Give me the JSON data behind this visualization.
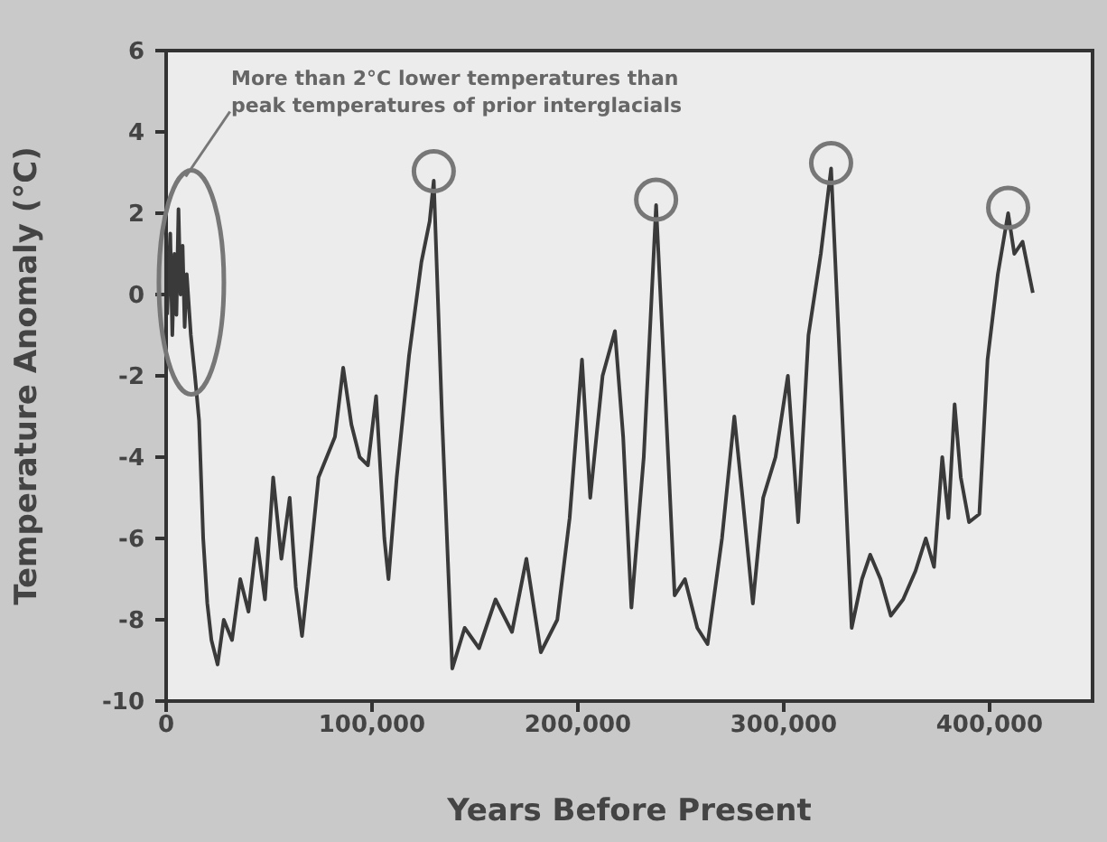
{
  "chart_data": {
    "type": "line",
    "xlabel": "Years Before Present",
    "ylabel": "Temperature Anomaly (°C)",
    "annotations": [
      "More than 2°C lower temperatures than peak temperatures of prior interglacials"
    ],
    "xlim": [
      0,
      450000
    ],
    "ylim": [
      -10,
      6
    ],
    "xticks": [
      0,
      {
        "value": 100000,
        "label": "100,000"
      },
      {
        "value": 200000,
        "label": "200,000"
      },
      {
        "value": 300000,
        "label": "300,000"
      },
      {
        "value": 400000,
        "label": "400,000"
      }
    ],
    "yticks": [
      -10,
      -8,
      -6,
      -4,
      -2,
      0,
      2,
      4,
      6
    ],
    "legend": false,
    "marker": "none",
    "line_style": "solid",
    "series": [
      {
        "color": "#3a3a3a",
        "x": [
          500,
          2000,
          3000,
          4000,
          5000,
          6000,
          7000,
          8000,
          9000,
          10000,
          12000,
          14000,
          16000,
          18000,
          20000,
          22000,
          25000,
          28000,
          32000,
          36000,
          40000,
          44000,
          48000,
          52000,
          56000,
          60000,
          63000,
          66000,
          70000,
          74000,
          78000,
          82000,
          86000,
          90000,
          94000,
          98000,
          102000,
          106000,
          108000,
          112000,
          118000,
          124000,
          128000,
          130000,
          134000,
          139000,
          145000,
          152000,
          160000,
          168000,
          175000,
          182000,
          190000,
          196000,
          202000,
          206000,
          212000,
          218000,
          222000,
          226000,
          232000,
          238000,
          242000,
          247000,
          252000,
          258000,
          263000,
          270000,
          276000,
          280000,
          285000,
          290000,
          296000,
          302000,
          307000,
          312000,
          318000,
          323000,
          328000,
          333000,
          338000,
          342000,
          347000,
          352000,
          358000,
          364000,
          369000,
          373000,
          377000,
          380000,
          383000,
          386000,
          390000,
          395000,
          399000,
          404000,
          409000,
          412000,
          416000,
          421000
        ],
        "values": [
          -0.5,
          1.5,
          -1,
          1,
          -0.5,
          2.1,
          0,
          1.2,
          -0.8,
          0.5,
          -1,
          -2,
          -3.1,
          -6,
          -7.6,
          -8.5,
          -9.1,
          -8,
          -8.5,
          -7,
          -7.8,
          -6,
          -7.5,
          -4.5,
          -6.5,
          -5,
          -7.2,
          -8.4,
          -6.5,
          -4.5,
          -4,
          -3.5,
          -1.8,
          -3.2,
          -4,
          -4.2,
          -2.5,
          -6,
          -7,
          -4.5,
          -1.5,
          0.8,
          1.8,
          2.8,
          -3,
          -9.2,
          -8.2,
          -8.7,
          -7.5,
          -8.3,
          -6.5,
          -8.8,
          -8,
          -5.5,
          -1.6,
          -5,
          -2,
          -0.9,
          -3.5,
          -7.7,
          -4,
          2.2,
          -2,
          -7.4,
          -7,
          -8.2,
          -8.6,
          -6,
          -3,
          -5,
          -7.6,
          -5,
          -4,
          -2,
          -5.6,
          -1,
          1,
          3.1,
          -2.5,
          -8.2,
          -7,
          -6.4,
          -7,
          -7.9,
          -7.5,
          -6.8,
          -6,
          -6.7,
          -4,
          -5.5,
          -2.7,
          -4.5,
          -5.6,
          -5.4,
          -1.6,
          0.5,
          2,
          1,
          1.3,
          0.04
        ]
      }
    ]
  }
}
